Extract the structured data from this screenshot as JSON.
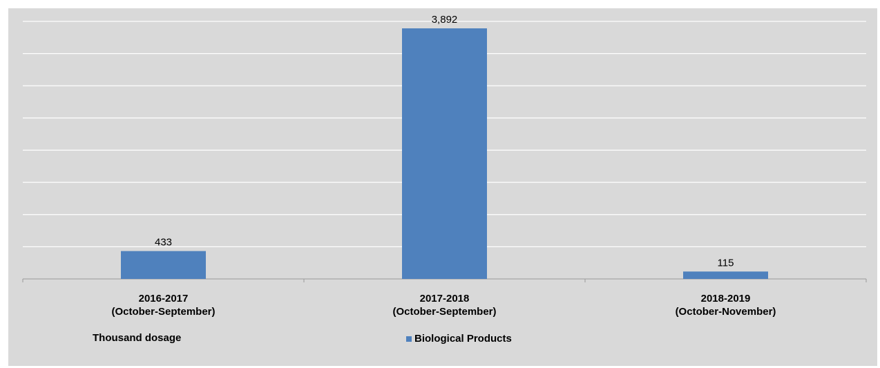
{
  "chart_data": {
    "type": "bar",
    "categories": [
      [
        "2016-2017",
        "(October-September)"
      ],
      [
        "2017-2018",
        "(October-September)"
      ],
      [
        "2018-2019",
        "(October-November)"
      ]
    ],
    "series": [
      {
        "name": "Biological Products",
        "values": [
          433,
          3892,
          115
        ],
        "labels": [
          "433",
          "3,892",
          "115"
        ],
        "color": "#4f81bd"
      }
    ],
    "unit_note": "Thousand dosage",
    "ylim": [
      0,
      4000
    ],
    "grid": true,
    "legend": "bottom-center",
    "background": "#d9d9d9",
    "gridline_color": "#ffffff"
  }
}
